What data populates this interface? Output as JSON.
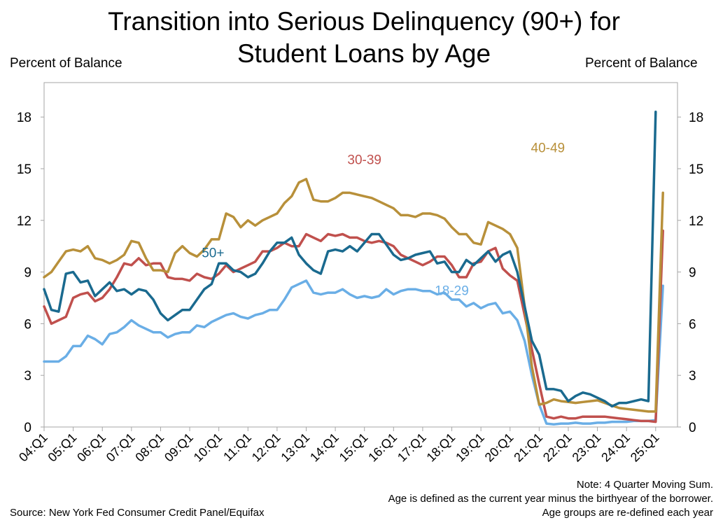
{
  "title_line1": "Transition into Serious Delinquency (90+) for",
  "title_line2": "Student Loans by Age",
  "left_axis_label": "Percent of Balance",
  "right_axis_label": "Percent of Balance",
  "source": "Source: New York Fed Consumer Credit Panel/Equifax",
  "notes": [
    "Note: 4 Quarter Moving Sum.",
    "Age is defined as the current year minus the birthyear of the borrower.",
    "Age groups are re-defined each year"
  ],
  "chart_data": {
    "type": "line",
    "title": "Transition into Serious Delinquency (90+) for Student Loans by Age",
    "ylabel": "Percent of Balance",
    "ylabel_right": "Percent of Balance",
    "ylim": [
      0,
      20
    ],
    "yticks": [
      0,
      3,
      6,
      9,
      12,
      15,
      18
    ],
    "x_start": "2004Q1",
    "x_ticks": [
      "04:Q1",
      "05:Q1",
      "06:Q1",
      "07:Q1",
      "08:Q1",
      "09:Q1",
      "10:Q1",
      "11:Q1",
      "12:Q1",
      "13:Q1",
      "14:Q1",
      "15:Q1",
      "16:Q1",
      "17:Q1",
      "18:Q1",
      "19:Q1",
      "20:Q1",
      "21:Q1",
      "22:Q1",
      "23:Q1",
      "24:Q1",
      "25:Q1"
    ],
    "series": [
      {
        "name": "18-29",
        "color": "#6aaee6",
        "label_pos": [
          2018.0,
          7.9
        ],
        "values": [
          3.8,
          3.8,
          3.8,
          4.1,
          4.7,
          4.7,
          5.3,
          5.1,
          4.8,
          5.4,
          5.5,
          5.8,
          6.2,
          5.9,
          5.7,
          5.5,
          5.5,
          5.2,
          5.4,
          5.5,
          5.5,
          5.9,
          5.8,
          6.1,
          6.3,
          6.5,
          6.6,
          6.4,
          6.3,
          6.5,
          6.6,
          6.8,
          6.8,
          7.4,
          8.1,
          8.3,
          8.5,
          7.8,
          7.7,
          7.8,
          7.8,
          8.0,
          7.7,
          7.5,
          7.6,
          7.5,
          7.6,
          8.0,
          7.7,
          7.9,
          8.0,
          8.0,
          7.9,
          7.9,
          7.7,
          7.8,
          7.4,
          7.4,
          7.0,
          7.2,
          6.9,
          7.1,
          7.2,
          6.6,
          6.7,
          6.2,
          5.0,
          3.0,
          1.3,
          0.2,
          0.15,
          0.2,
          0.2,
          0.25,
          0.2,
          0.2,
          0.25,
          0.25,
          0.3,
          0.3,
          0.3,
          0.35,
          0.35,
          0.35,
          0.4,
          8.2
        ]
      },
      {
        "name": "30-39",
        "color": "#c0504d",
        "label_pos": [
          2015.0,
          15.5
        ],
        "values": [
          7.0,
          6.0,
          6.2,
          6.4,
          7.5,
          7.7,
          7.8,
          7.3,
          7.5,
          8.0,
          8.7,
          9.5,
          9.4,
          9.8,
          9.4,
          9.5,
          9.5,
          8.7,
          8.6,
          8.6,
          8.5,
          8.9,
          8.7,
          8.6,
          8.9,
          9.4,
          9.0,
          9.2,
          9.4,
          9.6,
          10.2,
          10.2,
          10.4,
          10.7,
          10.5,
          10.5,
          11.2,
          11.0,
          10.8,
          11.2,
          11.1,
          11.2,
          11.0,
          11.0,
          10.8,
          10.7,
          10.8,
          10.7,
          10.5,
          10.0,
          9.8,
          9.6,
          9.4,
          9.6,
          9.9,
          9.9,
          9.4,
          8.7,
          8.7,
          9.5,
          9.6,
          10.2,
          10.4,
          9.2,
          8.8,
          8.5,
          6.5,
          4.5,
          2.5,
          0.6,
          0.5,
          0.6,
          0.5,
          0.5,
          0.6,
          0.6,
          0.6,
          0.6,
          0.55,
          0.5,
          0.45,
          0.4,
          0.35,
          0.35,
          0.3,
          11.4
        ]
      },
      {
        "name": "40-49",
        "color": "#b8903a",
        "label_pos": [
          2021.3,
          16.2
        ],
        "values": [
          8.7,
          9.0,
          9.6,
          10.2,
          10.3,
          10.2,
          10.5,
          9.8,
          9.7,
          9.5,
          9.7,
          10.0,
          10.8,
          10.7,
          9.8,
          9.1,
          9.1,
          9.0,
          10.1,
          10.5,
          10.1,
          9.9,
          10.3,
          10.9,
          10.9,
          12.4,
          12.2,
          11.6,
          12.0,
          11.7,
          12.0,
          12.2,
          12.4,
          13.0,
          13.4,
          14.2,
          14.4,
          13.2,
          13.1,
          13.1,
          13.3,
          13.6,
          13.6,
          13.5,
          13.4,
          13.3,
          13.1,
          12.9,
          12.7,
          12.3,
          12.3,
          12.2,
          12.4,
          12.4,
          12.3,
          12.1,
          11.6,
          11.2,
          11.2,
          10.7,
          10.6,
          11.9,
          11.7,
          11.5,
          11.2,
          10.4,
          7.0,
          3.5,
          1.3,
          1.4,
          1.6,
          1.5,
          1.45,
          1.4,
          1.45,
          1.5,
          1.55,
          1.4,
          1.25,
          1.1,
          1.05,
          1.0,
          0.95,
          0.9,
          0.9,
          13.6
        ]
      },
      {
        "name": "50+",
        "color": "#1a6a8f",
        "label_pos": [
          2009.8,
          10.1
        ],
        "values": [
          8.0,
          6.8,
          6.7,
          8.9,
          9.0,
          8.4,
          8.5,
          7.6,
          8.0,
          8.4,
          7.9,
          8.0,
          7.7,
          8.0,
          7.9,
          7.4,
          6.6,
          6.2,
          6.5,
          6.8,
          6.8,
          7.4,
          8.0,
          8.3,
          9.5,
          9.5,
          9.1,
          9.0,
          8.7,
          8.9,
          9.5,
          10.2,
          10.7,
          10.7,
          11.0,
          10.0,
          9.5,
          9.1,
          8.9,
          10.2,
          10.3,
          10.2,
          10.5,
          10.2,
          10.7,
          11.2,
          11.2,
          10.6,
          10.0,
          9.7,
          9.8,
          10.0,
          10.1,
          10.2,
          9.5,
          9.6,
          9.0,
          9.0,
          9.7,
          9.4,
          9.8,
          10.2,
          9.6,
          10.0,
          10.2,
          9.0,
          7.0,
          5.0,
          4.2,
          2.2,
          2.2,
          2.1,
          1.5,
          1.8,
          2.0,
          1.9,
          1.7,
          1.5,
          1.2,
          1.4,
          1.4,
          1.5,
          1.6,
          1.5,
          18.3
        ]
      }
    ]
  }
}
